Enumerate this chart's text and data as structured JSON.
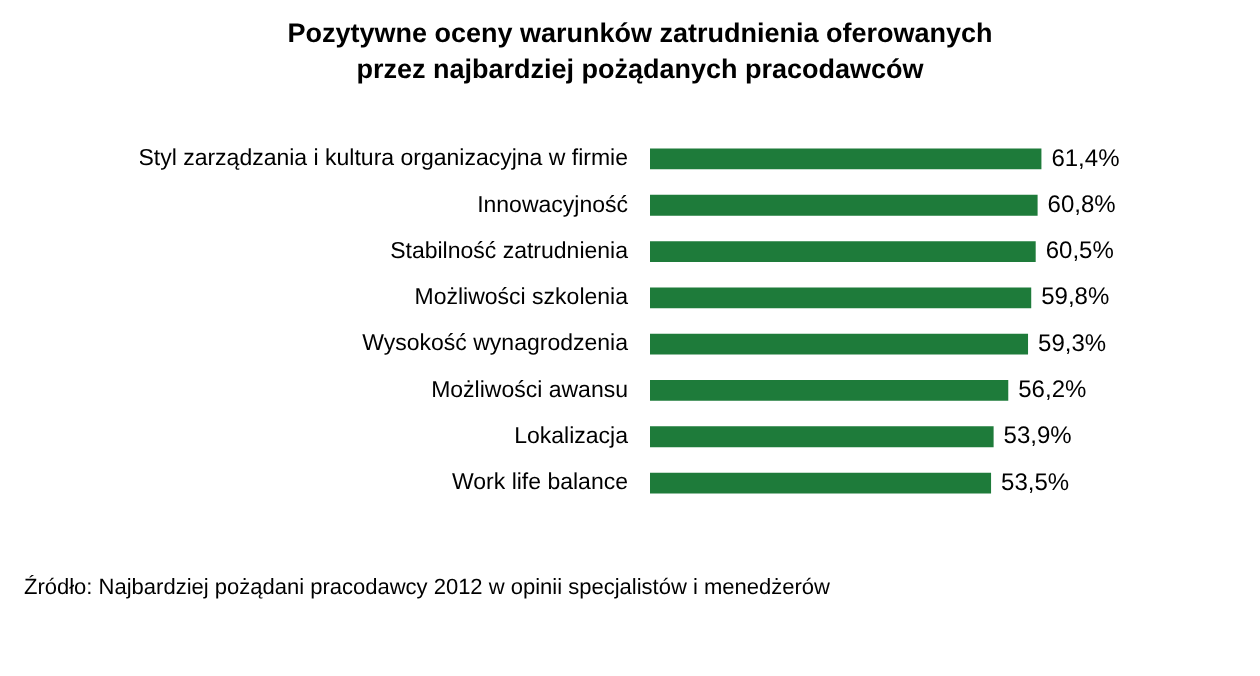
{
  "chart_data": {
    "type": "bar",
    "orientation": "horizontal",
    "title": "Pozytywne oceny warunków zatrudnienia oferowanych przez najbardziej pożądanych pracodawców",
    "categories": [
      "Styl zarządzania i kultura organizacyjna w firmie",
      "Innowacyjność",
      "Stabilność zatrudnienia",
      "Możliwości szkolenia",
      "Wysokość wynagrodzenia",
      "Możliwości awansu",
      "Lokalizacja",
      "Work life balance"
    ],
    "values": [
      61.4,
      60.8,
      60.5,
      59.8,
      59.3,
      56.2,
      53.9,
      53.5
    ],
    "value_labels": [
      "61,4%",
      "60,8%",
      "60,5%",
      "59,8%",
      "59,3%",
      "56,2%",
      "53,9%",
      "53,5%"
    ],
    "color": "#1e7b3a",
    "tick_labels": "y",
    "grid": false,
    "legend": false,
    "annotations": [
      "Źródło: Najbardziej pożądani pracodawcy 2012 w opinii specjalistów i menedżerów"
    ]
  }
}
